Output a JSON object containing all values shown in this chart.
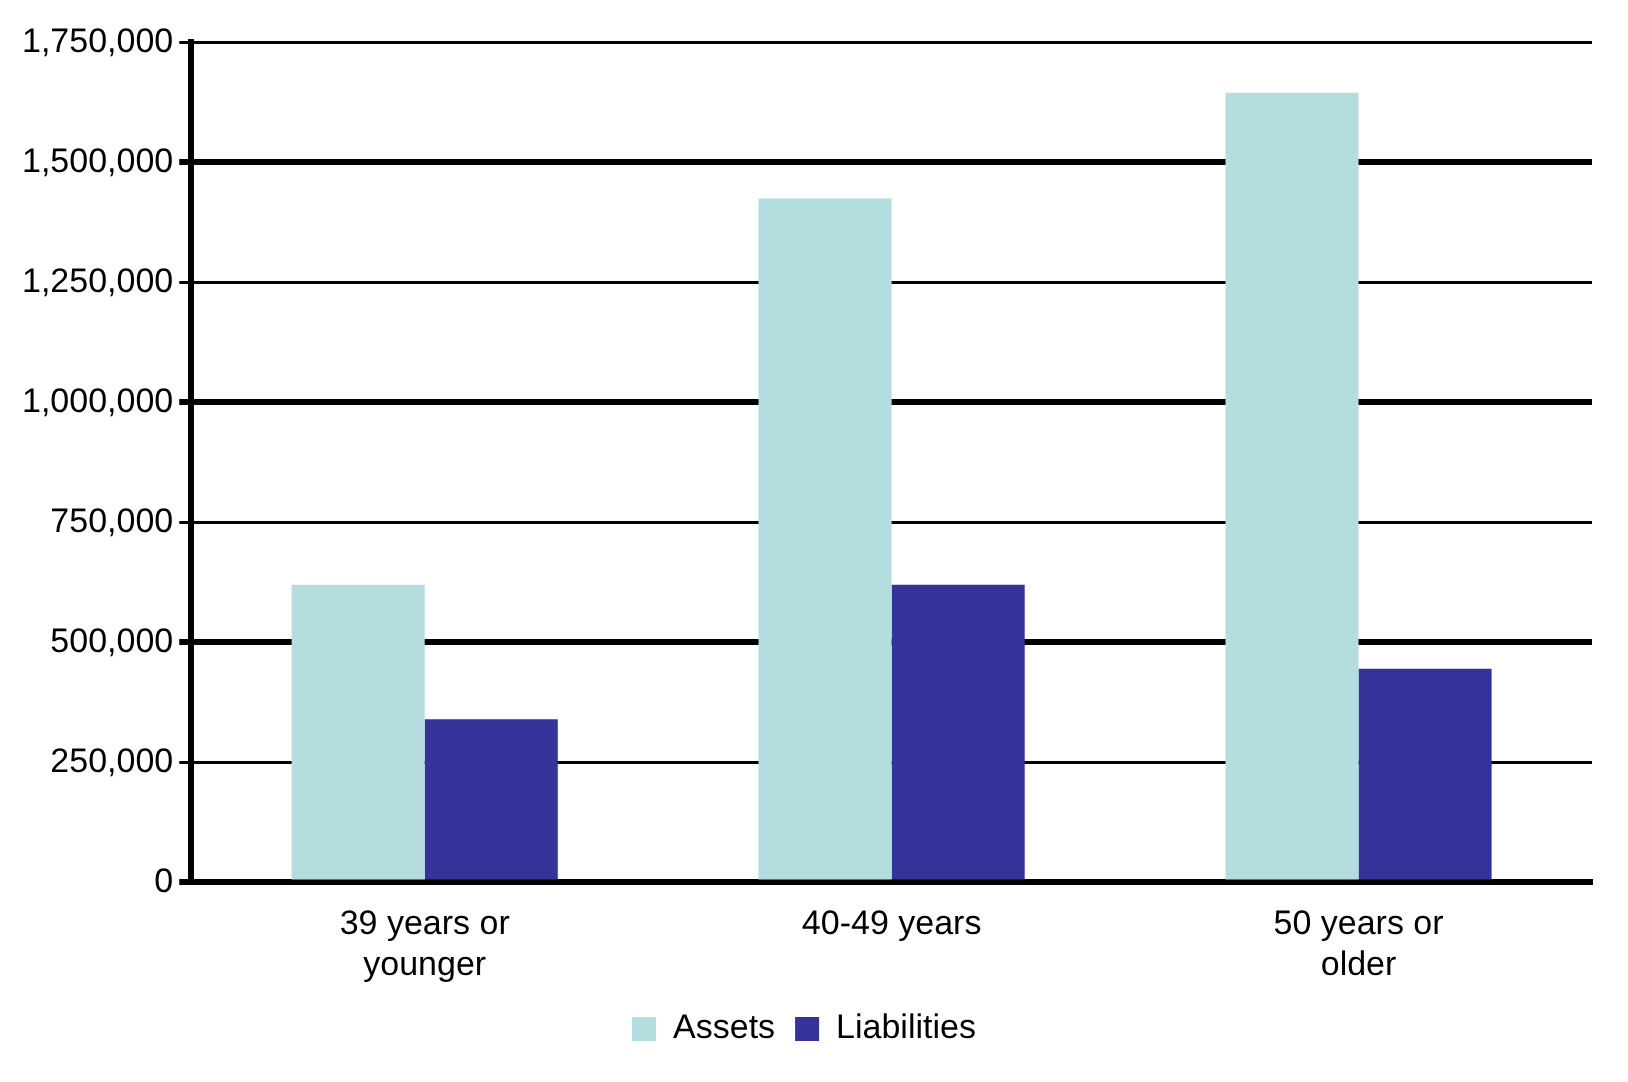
{
  "chart_data": {
    "type": "bar",
    "categories": [
      "39 years or younger",
      "40-49 years",
      "50 years or older"
    ],
    "series": [
      {
        "name": "Assets",
        "color": "#b4dde0",
        "values": [
          620000,
          1425000,
          1645000
        ]
      },
      {
        "name": "Liabilities",
        "color": "#333399",
        "values": [
          340000,
          620000,
          445000
        ]
      }
    ],
    "ylim": [
      0,
      1750000
    ],
    "yticks": [
      {
        "value": 0,
        "label": "0"
      },
      {
        "value": 250000,
        "label": "250,000"
      },
      {
        "value": 500000,
        "label": "500,000"
      },
      {
        "value": 750000,
        "label": "750,000"
      },
      {
        "value": 1000000,
        "label": "1,000,000"
      },
      {
        "value": 1250000,
        "label": "1,250,000"
      },
      {
        "value": 1500000,
        "label": "1,500,000"
      },
      {
        "value": 1750000,
        "label": "1,750,000"
      }
    ],
    "grid": "y",
    "legend": "bottom"
  }
}
